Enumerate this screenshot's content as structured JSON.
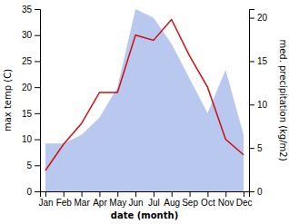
{
  "chart_data": {
    "type": "line",
    "categories": [
      "Jan",
      "Feb",
      "Mar",
      "Apr",
      "May",
      "Jun",
      "Jul",
      "Aug",
      "Sep",
      "Oct",
      "Nov",
      "Dec"
    ],
    "xlabel": "date (month)",
    "ylabel": "max temp (C)",
    "y2label": "med. precipitation (kg/m2)",
    "ylim": [
      0,
      35
    ],
    "yticks": [
      0,
      5,
      10,
      15,
      20,
      25,
      30,
      35
    ],
    "y2lim": [
      0,
      21
    ],
    "y2ticks": [
      0,
      5,
      10,
      15,
      20
    ],
    "series": [
      {
        "type": "area",
        "color": "#b8c8ee",
        "axis": "y2",
        "values": [
          5.5,
          5.5,
          6.5,
          8.5,
          12,
          21,
          20,
          17,
          13,
          9,
          14,
          6.5
        ]
      },
      {
        "type": "line",
        "color": "#cc1111",
        "values": [
          4,
          9,
          13,
          19,
          19,
          30,
          29,
          33,
          26,
          20,
          10,
          7
        ]
      }
    ]
  }
}
